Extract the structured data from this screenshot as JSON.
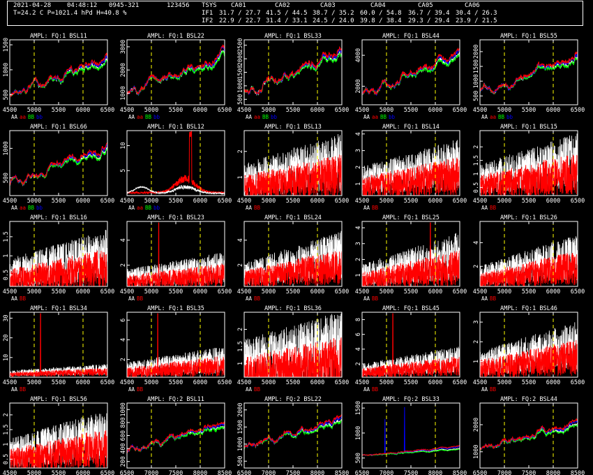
{
  "header": {
    "date": "2021-04-28",
    "time": "04:48:12",
    "scan": "0945-321",
    "code": "123456",
    "weather": "T=24.2 C P=1021.4 hPd H=40.8 %",
    "tsys_label": "TSYS",
    "ants": [
      "CA01",
      "CA02",
      "CA03",
      "CA04",
      "CA05",
      "CA06"
    ],
    "if_rows": [
      {
        "label": "IF1",
        "values": [
          "31.7 / 27.7",
          "41.5 / 44.5",
          "38.7 / 35.2",
          "60.0 / 54.8",
          "36.7 / 39.4",
          "30.4 / 26.3"
        ]
      },
      {
        "label": "IF2",
        "values": [
          "22.9 / 22.7",
          "31.4 / 33.1",
          "24.5 / 24.0",
          "39.8 / 38.4",
          "29.3 / 29.4",
          "23.9 / 21.5"
        ]
      }
    ]
  },
  "colors": {
    "aa": "#ffffff",
    "bb": "#00ff00",
    "ab": "#ff0000",
    "ba": "#0000ff",
    "marker": "#ffff00",
    "axis": "#ffffff"
  },
  "legends": {
    "full": [
      {
        "t": "AA",
        "c": "#ffffff"
      },
      {
        "t": "aa",
        "c": "#ff0000"
      },
      {
        "t": "BB",
        "c": "#00ff00"
      },
      {
        "t": "bb",
        "c": "#0000ff"
      }
    ],
    "two": [
      {
        "t": "AA",
        "c": "#ffffff"
      },
      {
        "t": "BB",
        "c": "#ff0000"
      }
    ]
  },
  "chart_data": [
    {
      "type": "line",
      "title": "AMPL: FQ:1 BSL11",
      "xlim": [
        4500,
        6500
      ],
      "xticks": [
        "4500",
        "5000",
        "5500",
        "6000",
        "6500"
      ],
      "markers": [
        5000,
        6000
      ],
      "yticks": [
        "500",
        "1000",
        "1500"
      ],
      "ylim": [
        300,
        1600
      ],
      "style": "smooth",
      "start": 500,
      "end": 1200,
      "legend": "full"
    },
    {
      "type": "line",
      "title": "AMPL: FQ:1 BSL22",
      "xlim": [
        4500,
        6500
      ],
      "xticks": [
        "4500",
        "5000",
        "5500",
        "6000",
        "6500"
      ],
      "markers": [
        5000,
        6000
      ],
      "yticks": [
        "1000",
        "2000",
        "3000"
      ],
      "ylim": [
        500,
        3300
      ],
      "style": "smooth",
      "start": 1000,
      "end": 2600,
      "legend": "full"
    },
    {
      "type": "line",
      "title": "AMPL: FQ:1 BSL33",
      "xlim": [
        4500,
        6500
      ],
      "xticks": [
        "4500",
        "5000",
        "5500",
        "6000",
        "6500"
      ],
      "markers": [
        5000,
        6000
      ],
      "yticks": [
        "500",
        "1000",
        "1500",
        "2000",
        "2500"
      ],
      "ylim": [
        300,
        2700
      ],
      "style": "smooth",
      "start": 700,
      "end": 2200,
      "legend": "full"
    },
    {
      "type": "line",
      "title": "AMPL: FQ:1 BSL44",
      "xlim": [
        4500,
        6500
      ],
      "xticks": [
        "4500",
        "5000",
        "5500",
        "6000",
        "6500"
      ],
      "markers": [
        5000,
        6000
      ],
      "yticks": [
        "2000",
        "4000"
      ],
      "ylim": [
        800,
        5000
      ],
      "style": "smooth",
      "start": 1500,
      "end": 4000,
      "legend": "full"
    },
    {
      "type": "line",
      "title": "AMPL: FQ:1 BSL55",
      "xlim": [
        4500,
        6500
      ],
      "xticks": [
        "4500",
        "5000",
        "5500",
        "6000",
        "6500"
      ],
      "markers": [
        5000,
        6000
      ],
      "yticks": [
        "500",
        "1000",
        "1500",
        "2000"
      ],
      "ylim": [
        200,
        2400
      ],
      "style": "smooth",
      "start": 600,
      "end": 1800,
      "legend": "full"
    },
    {
      "type": "line",
      "title": "AMPL: FQ:1 BSL66",
      "xlim": [
        4500,
        6500
      ],
      "xticks": [
        "4500",
        "5000",
        "5500",
        "6000",
        "6500"
      ],
      "markers": [
        5000,
        6000
      ],
      "yticks": [
        "500",
        "1000"
      ],
      "ylim": [
        200,
        1300
      ],
      "style": "smooth",
      "start": 400,
      "end": 1000,
      "legend": "full"
    },
    {
      "type": "line",
      "title": "AMPL: FQ:1 BSL12",
      "xlim": [
        4500,
        6500
      ],
      "xticks": [
        "4500",
        "5000",
        "5500",
        "6000",
        "6500"
      ],
      "markers": [
        5000,
        6000
      ],
      "yticks": [
        "5",
        "10"
      ],
      "ylim": [
        0,
        13
      ],
      "style": "spike12",
      "legend": "full"
    },
    {
      "type": "line",
      "title": "AMPL: FQ:1 BSL13",
      "xlim": [
        4500,
        6500
      ],
      "xticks": [
        "4500",
        "5000",
        "5500",
        "6000",
        "6500"
      ],
      "markers": [
        5000,
        6000
      ],
      "yticks": [
        "1",
        "2"
      ],
      "ylim": [
        0.3,
        2.8
      ],
      "style": "noisy",
      "start": 0.9,
      "end": 1.6,
      "legend": "two"
    },
    {
      "type": "line",
      "title": "AMPL: FQ:1 BSL14",
      "xlim": [
        4500,
        6500
      ],
      "xticks": [
        "4500",
        "5000",
        "5500",
        "6000",
        "6500"
      ],
      "markers": [
        5000,
        6000
      ],
      "yticks": [
        "1",
        "2",
        "3",
        "4"
      ],
      "ylim": [
        0.3,
        4.2
      ],
      "style": "noisy",
      "start": 1.2,
      "end": 2.2,
      "legend": "two"
    },
    {
      "type": "line",
      "title": "AMPL: FQ:1 BSL15",
      "xlim": [
        4500,
        6500
      ],
      "xticks": [
        "4500",
        "5000",
        "5500",
        "6000",
        "6500"
      ],
      "markers": [
        5000,
        6000
      ],
      "yticks": [
        "0.5",
        "1",
        "1.5",
        "2"
      ],
      "ylim": [
        0.2,
        2.6
      ],
      "style": "noisy",
      "start": 0.8,
      "end": 1.5,
      "legend": "two"
    },
    {
      "type": "line",
      "title": "AMPL: FQ:1 BSL16",
      "xlim": [
        4500,
        6500
      ],
      "xticks": [
        "4500",
        "5000",
        "5500",
        "6000",
        "6500"
      ],
      "markers": [
        5000,
        6000
      ],
      "yticks": [
        "0.5",
        "1",
        "1.5"
      ],
      "ylim": [
        0.2,
        1.9
      ],
      "style": "noisy",
      "start": 0.55,
      "end": 1.0,
      "legend": "two"
    },
    {
      "type": "line",
      "title": "AMPL: FQ:1 BSL23",
      "xlim": [
        4500,
        6500
      ],
      "xticks": [
        "4500",
        "5000",
        "5500",
        "6000",
        "6500"
      ],
      "markers": [
        5000,
        6000
      ],
      "yticks": [
        "2",
        "4"
      ],
      "ylim": [
        0.3,
        5.5
      ],
      "style": "spike",
      "spike": 5150,
      "start": 1.0,
      "end": 1.8,
      "legend": "two"
    },
    {
      "type": "line",
      "title": "AMPL: FQ:1 BSL24",
      "xlim": [
        4500,
        6500
      ],
      "xticks": [
        "4500",
        "5000",
        "5500",
        "6000",
        "6500"
      ],
      "markers": [
        5000,
        6000
      ],
      "yticks": [
        "2",
        "4"
      ],
      "ylim": [
        0.3,
        5.5
      ],
      "style": "noisy",
      "start": 1.3,
      "end": 2.8,
      "legend": "two"
    },
    {
      "type": "line",
      "title": "AMPL: FQ:1 BSL25",
      "xlim": [
        4500,
        6500
      ],
      "xticks": [
        "4500",
        "5000",
        "5500",
        "6000",
        "6500"
      ],
      "markers": [
        5000,
        6000
      ],
      "yticks": [
        "1",
        "2",
        "3",
        "4"
      ],
      "ylim": [
        0.3,
        4.4
      ],
      "style": "spike",
      "spike": 5900,
      "start": 1.0,
      "end": 2.2,
      "legend": "two"
    },
    {
      "type": "line",
      "title": "AMPL: FQ:1 BSL26",
      "xlim": [
        4500,
        6500
      ],
      "xticks": [
        "4500",
        "5000",
        "5500",
        "6000",
        "6500"
      ],
      "markers": [
        5000,
        6000
      ],
      "yticks": [
        "2",
        "4"
      ],
      "ylim": [
        0.3,
        5.8
      ],
      "style": "noisy",
      "start": 1.2,
      "end": 2.8,
      "legend": "two"
    },
    {
      "type": "line",
      "title": "AMPL: FQ:1 BSL34",
      "xlim": [
        4500,
        6500
      ],
      "xticks": [
        "4500",
        "5000",
        "5500",
        "6000",
        "6500"
      ],
      "markers": [
        5000,
        6000
      ],
      "yticks": [
        "10",
        "20",
        "30"
      ],
      "ylim": [
        0,
        33
      ],
      "style": "spike",
      "spike": 5130,
      "start": 2,
      "end": 4,
      "legend": "two"
    },
    {
      "type": "line",
      "title": "AMPL: FQ:1 BSL35",
      "xlim": [
        4500,
        6500
      ],
      "xticks": [
        "4500",
        "5000",
        "5500",
        "6000",
        "6500"
      ],
      "markers": [
        5000,
        6000
      ],
      "yticks": [
        "2",
        "4",
        "6"
      ],
      "ylim": [
        0.2,
        6.8
      ],
      "style": "spike",
      "spike": 5130,
      "start": 1.0,
      "end": 2.0,
      "legend": "two"
    },
    {
      "type": "line",
      "title": "AMPL: FQ:1 BSL36",
      "xlim": [
        4500,
        6500
      ],
      "xticks": [
        "4500",
        "5000",
        "5500",
        "6000",
        "6500"
      ],
      "markers": [
        5000,
        6000
      ],
      "yticks": [
        "1",
        "1.5",
        "2"
      ],
      "ylim": [
        0.6,
        2.5
      ],
      "style": "noisy",
      "start": 1.0,
      "end": 1.5,
      "legend": "two"
    },
    {
      "type": "line",
      "title": "AMPL: FQ:1 BSL45",
      "xlim": [
        4500,
        6500
      ],
      "xticks": [
        "4500",
        "5000",
        "5500",
        "6000",
        "6500"
      ],
      "markers": [
        5000,
        6000
      ],
      "yticks": [
        "2",
        "4",
        "6",
        "8"
      ],
      "ylim": [
        0.2,
        9
      ],
      "style": "spike",
      "spike": 5130,
      "start": 1.2,
      "end": 2.6,
      "legend": "two"
    },
    {
      "type": "line",
      "title": "AMPL: FQ:1 BSL46",
      "xlim": [
        4500,
        6500
      ],
      "xticks": [
        "4500",
        "5000",
        "5500",
        "6000",
        "6500"
      ],
      "markers": [
        5000,
        6000
      ],
      "yticks": [
        "1",
        "2",
        "3"
      ],
      "ylim": [
        0.2,
        3.5
      ],
      "style": "noisy",
      "start": 0.9,
      "end": 1.8,
      "legend": "two"
    },
    {
      "type": "line",
      "title": "AMPL: FQ:1 BSL56",
      "xlim": [
        4500,
        6500
      ],
      "xticks": [
        "4500",
        "5000",
        "5500",
        "6000",
        "6500"
      ],
      "markers": [
        5000,
        6000
      ],
      "yticks": [
        "0.5",
        "1",
        "1.5",
        "2"
      ],
      "ylim": [
        0.2,
        2.4
      ],
      "style": "noisy",
      "start": 0.7,
      "end": 1.3,
      "legend": "two"
    },
    {
      "type": "line",
      "title": "AMPL: FQ:2 BSL11",
      "xlim": [
        6500,
        8500
      ],
      "xticks": [
        "6500",
        "7000",
        "7500",
        "8000",
        "8500"
      ],
      "markers": [
        7000,
        8000
      ],
      "yticks": [
        "200",
        "400",
        "600",
        "800",
        "1000"
      ],
      "ylim": [
        100,
        1100
      ],
      "style": "smooth",
      "start": 350,
      "end": 800,
      "legend": "full"
    },
    {
      "type": "line",
      "title": "AMPL: FQ:2 BSL22",
      "xlim": [
        6500,
        8500
      ],
      "xticks": [
        "6500",
        "7000",
        "7500",
        "8000",
        "8500"
      ],
      "markers": [
        7000,
        8000
      ],
      "yticks": [
        "500",
        "1000",
        "1500",
        "2000"
      ],
      "ylim": [
        300,
        2200
      ],
      "style": "smooth",
      "start": 900,
      "end": 1700,
      "legend": "full"
    },
    {
      "type": "line",
      "title": "AMPL: FQ:2 BSL33",
      "xlim": [
        6500,
        8500
      ],
      "xticks": [
        "6500",
        "7000",
        "7500",
        "8000",
        "8500"
      ],
      "markers": [
        7000,
        8000
      ],
      "yticks": [
        "500",
        "1000",
        "1500"
      ],
      "ylim": [
        300,
        1600
      ],
      "style": "spikeblue",
      "start": 550,
      "end": 700,
      "legend": "full"
    },
    {
      "type": "line",
      "title": "AMPL: FQ:2 BSL44",
      "xlim": [
        6500,
        8500
      ],
      "xticks": [
        "6500",
        "7000",
        "7500",
        "8000",
        "8500"
      ],
      "markers": [
        7000,
        8000
      ],
      "yticks": [
        "1000",
        "2000"
      ],
      "ylim": [
        400,
        2800
      ],
      "style": "smooth",
      "start": 1100,
      "end": 2000,
      "legend": "full"
    }
  ]
}
